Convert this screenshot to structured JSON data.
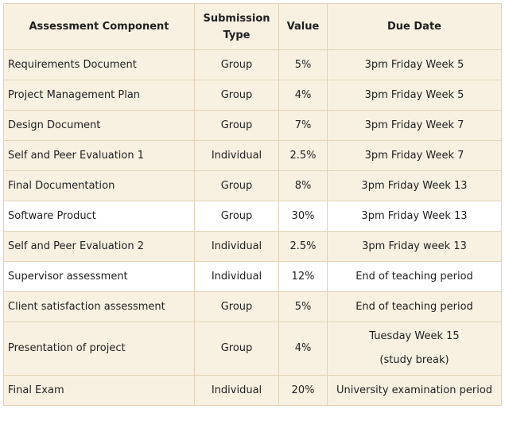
{
  "table": {
    "headers": {
      "component": "Assessment Component",
      "type_line1": "Submission",
      "type_line2": "Type",
      "value": "Value",
      "due": "Due Date"
    },
    "rows": [
      {
        "component": "Requirements Document",
        "type": "Group",
        "value": "5%",
        "due": "3pm Friday Week 5"
      },
      {
        "component": "Project Management Plan",
        "type": "Group",
        "value": "4%",
        "due": "3pm Friday Week 5"
      },
      {
        "component": "Design Document",
        "type": "Group",
        "value": "7%",
        "due": "3pm Friday Week 7"
      },
      {
        "component": "Self and Peer Evaluation 1",
        "type": "Individual",
        "value": "2.5%",
        "due": "3pm Friday Week 7"
      },
      {
        "component": "Final Documentation",
        "type": "Group",
        "value": "8%",
        "due": "3pm Friday Week 13"
      },
      {
        "component": "Software Product",
        "type": "Group",
        "value": "30%",
        "due": "3pm Friday Week 13"
      },
      {
        "component": "Self and Peer Evaluation 2",
        "type": "Individual",
        "value": "2.5%",
        "due": "3pm Friday week 13"
      },
      {
        "component": "Supervisor assessment",
        "type": "Individual",
        "value": "12%",
        "due": "End of teaching period"
      },
      {
        "component": "Client satisfaction assessment",
        "type": "Group",
        "value": "5%",
        "due": "End of teaching period"
      },
      {
        "component": "Presentation of project",
        "type": "Group",
        "value": "4%",
        "due_line1": "Tuesday Week 15",
        "due_line2": "(study break)"
      },
      {
        "component": "Final Exam",
        "type": "Individual",
        "value": "20%",
        "due": "University examination period"
      }
    ]
  },
  "colors": {
    "cell_background": "#f8f1e2",
    "highlight_background": "#ffffff",
    "border": "#e2d3b6"
  }
}
